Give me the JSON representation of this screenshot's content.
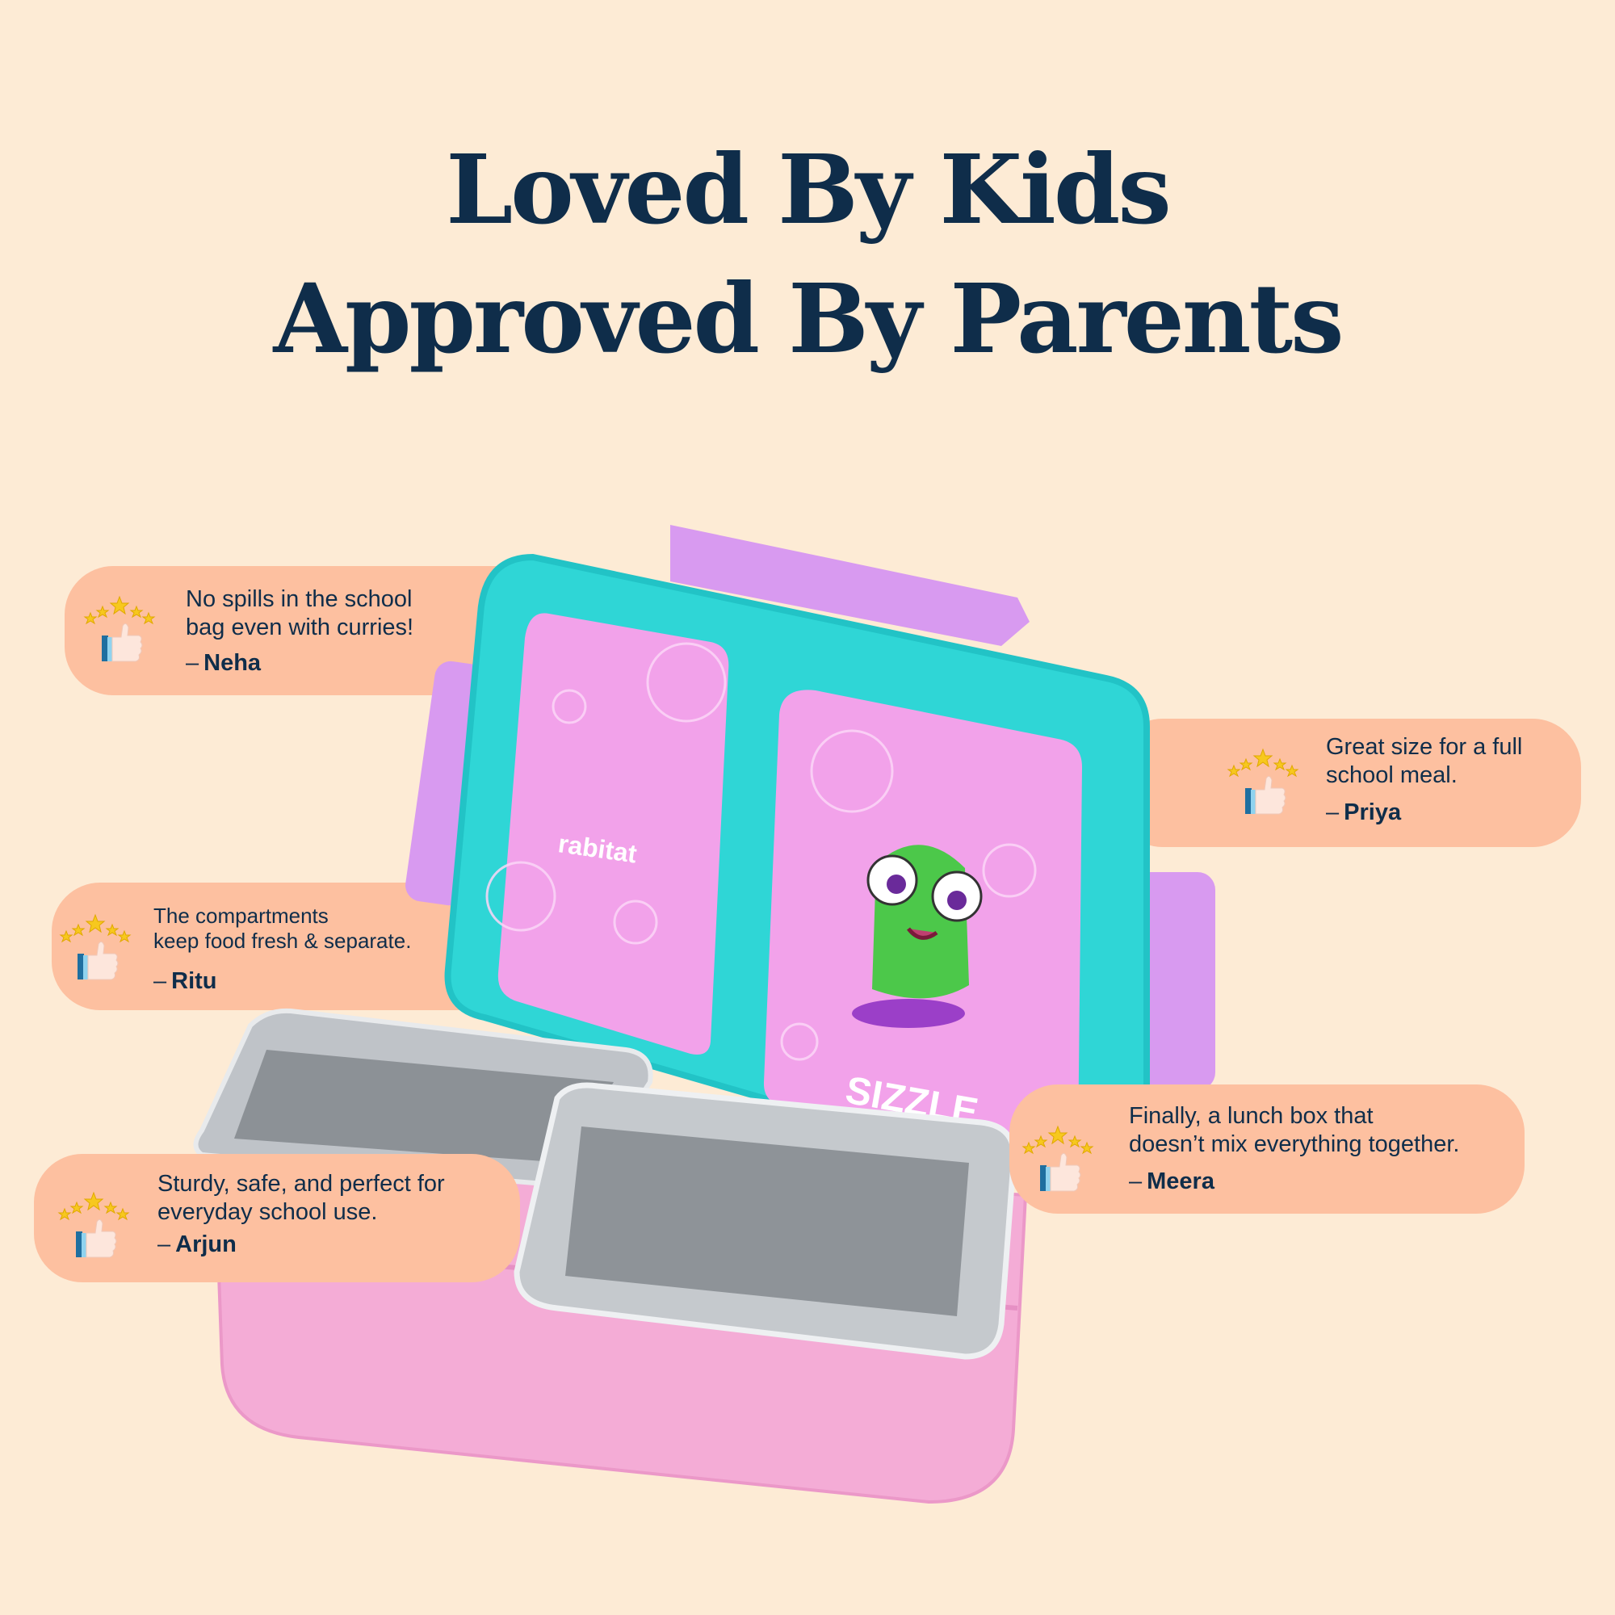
{
  "heading": {
    "line1": "Loved By Kids",
    "line2": "Approved By Parents"
  },
  "colors": {
    "background": "#fdebd5",
    "card": "#fdc0a0",
    "text": "#0f2d4a",
    "lid": "#2fd6d6",
    "panel": "#f2a2ea",
    "clip": "#d89af0",
    "tray": "#f4acd6"
  },
  "product": {
    "brand_logo": "rabitat",
    "character_label": "SIZZLE"
  },
  "reviews": [
    {
      "text_line1": "No spills in the school",
      "text_line2": "bag even with curries!",
      "dash": "–",
      "author": "Neha",
      "rating": 5,
      "icon": "five-stars-thumbs-up-icon"
    },
    {
      "text_line1": "Great size for a full",
      "text_line2": "school meal.",
      "dash": "–",
      "author": "Priya",
      "rating": 5,
      "icon": "five-stars-thumbs-up-icon"
    },
    {
      "text_line1": "The compartments",
      "text_line2": "keep food fresh & separate.",
      "dash": "–",
      "author": "Ritu",
      "rating": 5,
      "icon": "five-stars-thumbs-up-icon"
    },
    {
      "text_line1": "Finally, a lunch box that",
      "text_line2": "doesn’t mix everything together.",
      "dash": "–",
      "author": "Meera",
      "rating": 5,
      "icon": "five-stars-thumbs-up-icon"
    },
    {
      "text_line1": "Sturdy, safe, and perfect for",
      "text_line2": "everyday school use.",
      "dash": "–",
      "author": "Arjun",
      "rating": 5,
      "icon": "five-stars-thumbs-up-icon"
    }
  ]
}
